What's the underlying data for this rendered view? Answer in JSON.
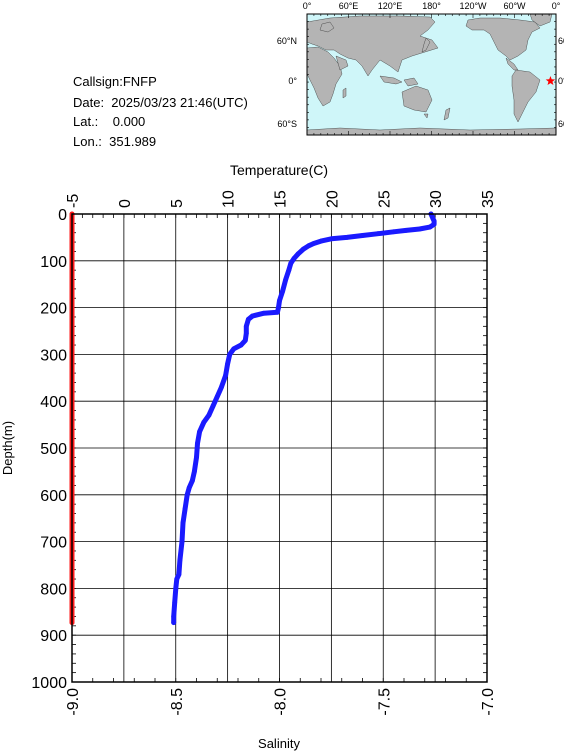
{
  "header": {
    "callsign_line": "Callsign:FNFP",
    "date_line": "Date:  2025/03/23 21:46(UTC)",
    "lat_line": "Lat.:    0.000",
    "lon_line": "Lon.:  351.989"
  },
  "map": {
    "lon_labels": [
      "0°",
      "60°E",
      "120°E",
      "180°",
      "120°W",
      "60°W",
      "0°"
    ],
    "lat_labels": [
      "60°N",
      "0°",
      "60°S"
    ],
    "ocean_color": "#cff6f9",
    "land_color": "#b4b4b4",
    "marker": {
      "symbol": "star",
      "color": "#ff0000",
      "lat": 0.0,
      "lon": 351.989
    }
  },
  "chart_data": {
    "type": "line",
    "title": "",
    "ylabel": "Depth(m)",
    "y_axis": {
      "min": 0,
      "max": 1000,
      "ticks": [
        0,
        100,
        200,
        300,
        400,
        500,
        600,
        700,
        800,
        900,
        1000
      ],
      "inverted": true
    },
    "top_axis": {
      "label": "Temperature(C)",
      "min": -5,
      "max": 35,
      "ticks": [
        -5,
        0,
        5,
        10,
        15,
        20,
        25,
        30,
        35
      ]
    },
    "bottom_axis": {
      "label": "Salinity",
      "min": -9.0,
      "max": -7.0,
      "ticks": [
        "-9.0",
        "-8.5",
        "-8.0",
        "-7.5",
        "-7.0"
      ]
    },
    "grid": true,
    "series": [
      {
        "axis": "temperature",
        "color": "#1a1aff",
        "points": [
          [
            29.6,
            0
          ],
          [
            29.7,
            5
          ],
          [
            29.8,
            10
          ],
          [
            29.9,
            15
          ],
          [
            29.9,
            22
          ],
          [
            29.5,
            28
          ],
          [
            28.5,
            32
          ],
          [
            27.2,
            35
          ],
          [
            26.0,
            38
          ],
          [
            24.5,
            42
          ],
          [
            23.0,
            46
          ],
          [
            21.5,
            50
          ],
          [
            20.0,
            53
          ],
          [
            19.0,
            58
          ],
          [
            18.3,
            63
          ],
          [
            17.8,
            68
          ],
          [
            17.3,
            75
          ],
          [
            16.8,
            85
          ],
          [
            16.4,
            95
          ],
          [
            16.1,
            105
          ],
          [
            15.9,
            120
          ],
          [
            15.6,
            140
          ],
          [
            15.3,
            165
          ],
          [
            15.0,
            185
          ],
          [
            14.9,
            200
          ],
          [
            14.8,
            210
          ],
          [
            13.5,
            212
          ],
          [
            12.4,
            218
          ],
          [
            12.0,
            225
          ],
          [
            11.8,
            240
          ],
          [
            11.8,
            255
          ],
          [
            11.7,
            270
          ],
          [
            11.3,
            280
          ],
          [
            10.6,
            288
          ],
          [
            10.2,
            300
          ],
          [
            10.0,
            320
          ],
          [
            9.8,
            345
          ],
          [
            9.4,
            370
          ],
          [
            9.0,
            390
          ],
          [
            8.6,
            410
          ],
          [
            8.2,
            430
          ],
          [
            7.7,
            445
          ],
          [
            7.3,
            465
          ],
          [
            7.1,
            490
          ],
          [
            7.0,
            520
          ],
          [
            6.8,
            550
          ],
          [
            6.6,
            570
          ],
          [
            6.3,
            585
          ],
          [
            6.1,
            600
          ],
          [
            5.9,
            630
          ],
          [
            5.7,
            660
          ],
          [
            5.6,
            700
          ],
          [
            5.4,
            740
          ],
          [
            5.3,
            770
          ],
          [
            5.1,
            780
          ],
          [
            5.0,
            800
          ],
          [
            4.9,
            830
          ],
          [
            4.8,
            860
          ],
          [
            4.8,
            873
          ]
        ]
      },
      {
        "axis": "salinity",
        "color": "#ff1a1a",
        "points": [
          [
            -9.0,
            0
          ],
          [
            -9.0,
            873
          ]
        ]
      }
    ]
  }
}
